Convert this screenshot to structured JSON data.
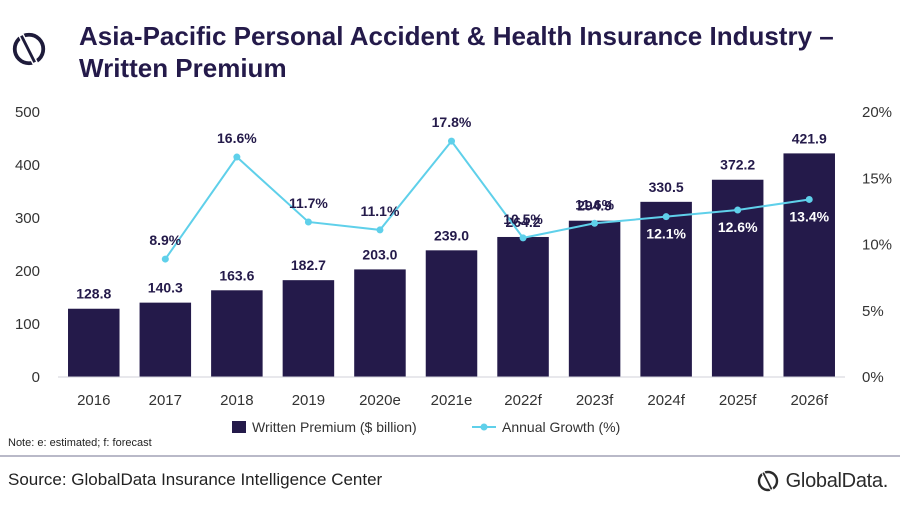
{
  "header": {
    "title": "Asia-Pacific Personal Accident & Health Insurance Industry – Written Premium",
    "logo_icon": "globaldata-mark-icon"
  },
  "colors": {
    "bar": "#241a4a",
    "line": "#5fd0ea",
    "title": "#241a4a"
  },
  "chart_data": {
    "type": "bar",
    "categories": [
      "2016",
      "2017",
      "2018",
      "2019",
      "2020e",
      "2021e",
      "2022f",
      "2023f",
      "2024f",
      "2025f",
      "2026f"
    ],
    "series": [
      {
        "name": "Written Premium ($ billion)",
        "type": "bar",
        "axis": "left",
        "values": [
          128.8,
          140.3,
          163.6,
          182.7,
          203.0,
          239.0,
          264.2,
          294.9,
          330.5,
          372.2,
          421.9
        ],
        "labels": [
          "128.8",
          "140.3",
          "163.6",
          "182.7",
          "203.0",
          "239.0",
          "264.2",
          "294.9",
          "330.5",
          "372.2",
          "421.9"
        ]
      },
      {
        "name": "Annual Growth (%)",
        "type": "line",
        "axis": "right",
        "values": [
          null,
          8.9,
          16.6,
          11.7,
          11.1,
          17.8,
          10.5,
          11.6,
          12.1,
          12.6,
          13.4
        ],
        "labels": [
          "",
          "8.9%",
          "16.6%",
          "11.7%",
          "11.1%",
          "17.8%",
          "10.5%",
          "11.6%",
          "12.1%",
          "12.6%",
          "13.4%"
        ]
      }
    ],
    "y_left": {
      "ylim": [
        0,
        500
      ],
      "ticks": [
        "0",
        "100",
        "200",
        "300",
        "400",
        "500"
      ]
    },
    "y_right": {
      "ylim": [
        0,
        20
      ],
      "ticks": [
        "0%",
        "5%",
        "10%",
        "15%",
        "20%"
      ]
    },
    "grid": false,
    "legend_position": "bottom"
  },
  "footer": {
    "note": "Note: e: estimated; f: forecast",
    "source": "Source: GlobalData Insurance Intelligence Center",
    "brand_name": "GlobalData.",
    "brand_icon": "globaldata-mark-icon"
  }
}
